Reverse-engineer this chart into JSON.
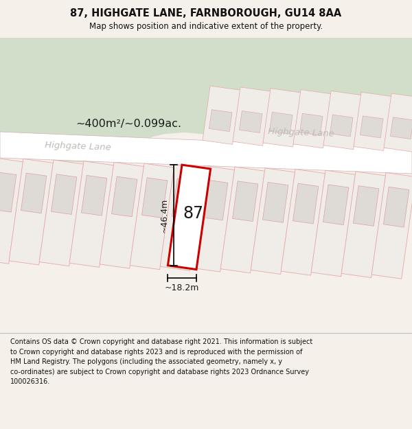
{
  "title": "87, HIGHGATE LANE, FARNBOROUGH, GU14 8AA",
  "subtitle": "Map shows position and indicative extent of the property.",
  "footer": "Contains OS data © Crown copyright and database right 2021. This information is subject\nto Crown copyright and database rights 2023 and is reproduced with the permission of\nHM Land Registry. The polygons (including the associated geometry, namely x, y\nco-ordinates) are subject to Crown copyright and database rights 2023 Ordnance Survey\n100026316.",
  "map_bg": "#ede8e2",
  "road_fill": "#ffffff",
  "green_fill": "#d0deca",
  "plot_outer_fill": "#f0ece8",
  "plot_outer_edge": "#e8a8a8",
  "plot_inner_fill": "#dedad6",
  "plot_inner_edge": "#e0a0a0",
  "prop_stroke": "#cc0000",
  "prop_fill": "#ffffff",
  "property_label": "87",
  "area_label": "~400m²/~0.099ac.",
  "dim_width": "~18.2m",
  "dim_height": "~46.4m",
  "road_label": "Highgate Lane",
  "header_bg": "#f5f0ea",
  "footer_bg": "#ffffff",
  "title_fontsize": 10.5,
  "subtitle_fontsize": 8.5,
  "footer_fontsize": 7.0
}
